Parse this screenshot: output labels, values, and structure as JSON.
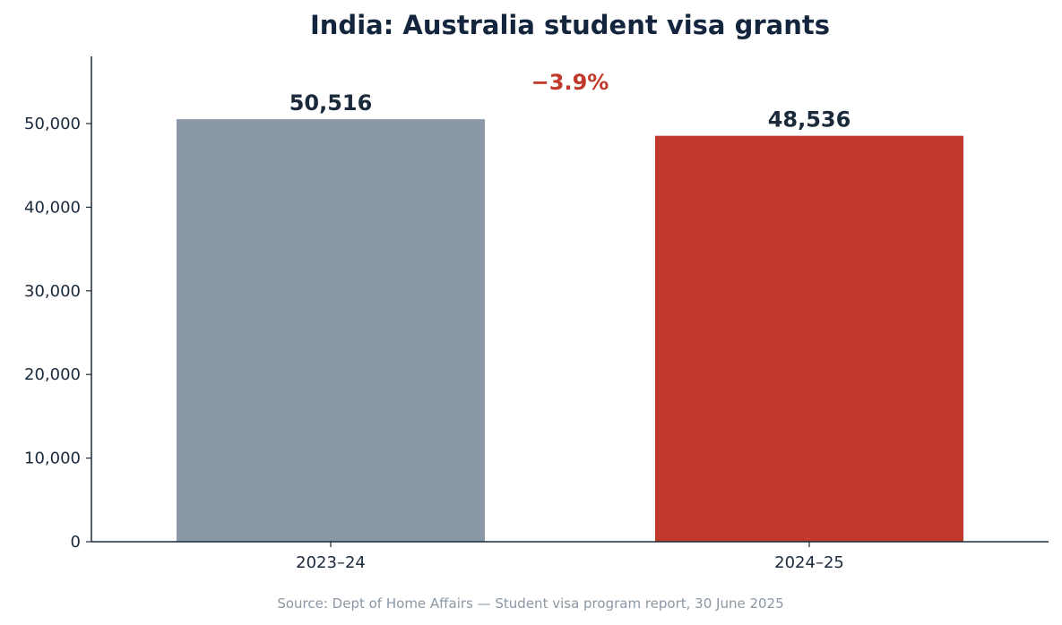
{
  "chart_data": {
    "type": "bar",
    "title": "India: Australia student visa grants",
    "categories": [
      "2023–24",
      "2024–25"
    ],
    "values": [
      50516,
      48536
    ],
    "value_labels": [
      "50,516",
      "48,536"
    ],
    "bar_colors": [
      "#8a97a5",
      "#c0392b"
    ],
    "ylim": [
      0,
      58000
    ],
    "yticks": [
      0,
      10000,
      20000,
      30000,
      40000,
      50000
    ],
    "ytick_labels": [
      "0",
      "10,000",
      "20,000",
      "30,000",
      "40,000",
      "50,000"
    ],
    "xlabel": "",
    "ylabel": "",
    "grid": false,
    "legend": "none",
    "annotation": {
      "text": "−3.9%",
      "color": "#c0392b"
    },
    "source": "Source: Dept of Home Affairs — Student visa program report, 30 June 2025"
  },
  "colors": {
    "title": "#14263d",
    "text": "#1b2a3b",
    "axis": "#1b2a3b",
    "source": "#8a97a5"
  }
}
